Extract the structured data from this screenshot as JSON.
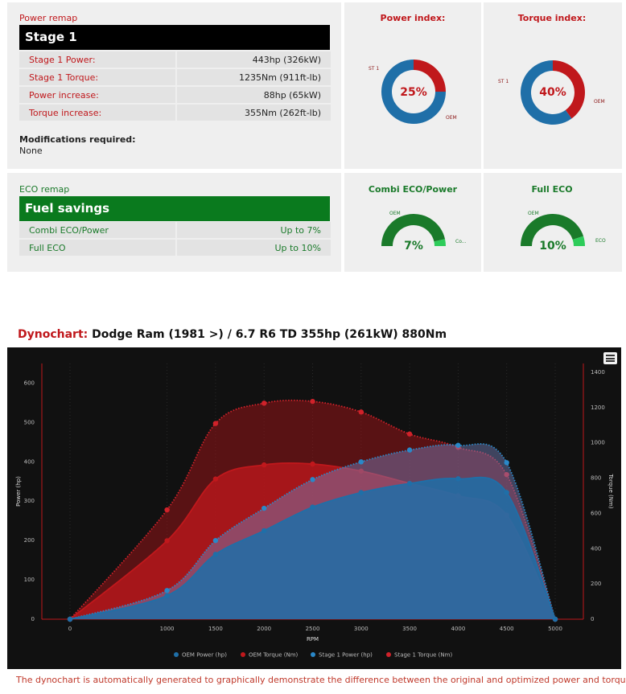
{
  "power_remap": {
    "section_title": "Power remap",
    "bar_title": "Stage 1",
    "rows": [
      {
        "label": "Stage 1 Power:",
        "value": "443hp (326kW)"
      },
      {
        "label": "Stage 1 Torque:",
        "value": "1235Nm (911ft-lb)"
      },
      {
        "label": "Power increase:",
        "value": "88hp (65kW)"
      },
      {
        "label": "Torque increase:",
        "value": "355Nm (262ft-lb)"
      }
    ],
    "mods_label": "Modifications required:",
    "mods_value": "None"
  },
  "power_index": {
    "title": "Power index:",
    "percent_label": "25%",
    "fraction": 0.25,
    "label_st": "ST 1",
    "label_oem": "OEM"
  },
  "torque_index": {
    "title": "Torque index:",
    "percent_label": "40%",
    "fraction": 0.4,
    "label_st": "ST 1",
    "label_oem": "OEM"
  },
  "eco_remap": {
    "section_title": "ECO remap",
    "bar_title": "Fuel savings",
    "rows": [
      {
        "label": "Combi ECO/Power",
        "value": "Up to 7%"
      },
      {
        "label": "Full ECO",
        "value": "Up to 10%"
      }
    ]
  },
  "combi_eco": {
    "title": "Combi ECO/Power",
    "percent_label": "7%",
    "fraction": 0.07,
    "label_oem": "OEM",
    "label_right": "Co..."
  },
  "full_eco": {
    "title": "Full ECO",
    "percent_label": "10%",
    "fraction": 0.1,
    "label_oem": "OEM",
    "label_right": "ECO"
  },
  "dyno": {
    "heading_prefix": "Dynochart:",
    "heading_rest": " Dodge Ram (1981 >) / 6.7 R6 TD 355hp (261kW) 880Nm",
    "footnote": "The dynochart is automatically generated to graphically demonstrate the difference between the original and optimized power and torque."
  },
  "chart_data": {
    "type": "area",
    "xlabel": "RPM",
    "ylabel_left": "Power (hp)",
    "ylabel_right": "Torque (Nm)",
    "x_ticks": [
      "0",
      "1000",
      "1500",
      "2000",
      "2500",
      "3000",
      "3500",
      "4000",
      "4500",
      "5000"
    ],
    "x_range": [
      0,
      5000
    ],
    "y_left_ticks": [
      "0",
      "100",
      "200",
      "300",
      "400",
      "500",
      "600"
    ],
    "y_left_range": [
      0,
      650
    ],
    "y_right_ticks": [
      "0",
      "200",
      "400",
      "600",
      "800",
      "1000",
      "1200",
      "1400"
    ],
    "y_right_range": [
      0,
      1450
    ],
    "series": [
      {
        "name": "OEM Power (hp)",
        "axis": "left",
        "color": "#1f6fa8",
        "style": "solid",
        "points": [
          [
            0,
            0
          ],
          [
            1000,
            60
          ],
          [
            1500,
            165
          ],
          [
            2000,
            225
          ],
          [
            2500,
            285
          ],
          [
            3000,
            322
          ],
          [
            3500,
            345
          ],
          [
            4000,
            357
          ],
          [
            4500,
            322
          ],
          [
            5000,
            0
          ]
        ]
      },
      {
        "name": "OEM Torque (Nm)",
        "axis": "right",
        "color": "#c0181c",
        "style": "solid",
        "points": [
          [
            0,
            0
          ],
          [
            1000,
            445
          ],
          [
            1500,
            795
          ],
          [
            2000,
            875
          ],
          [
            2500,
            880
          ],
          [
            3000,
            840
          ],
          [
            3500,
            770
          ],
          [
            4000,
            700
          ],
          [
            4500,
            590
          ],
          [
            5000,
            0
          ]
        ]
      },
      {
        "name": "Stage 1 Power (hp)",
        "axis": "left",
        "color": "#2a88c8",
        "style": "dotted",
        "points": [
          [
            0,
            0
          ],
          [
            1000,
            73
          ],
          [
            1500,
            200
          ],
          [
            2000,
            282
          ],
          [
            2500,
            355
          ],
          [
            3000,
            400
          ],
          [
            3500,
            430
          ],
          [
            4000,
            442
          ],
          [
            4500,
            398
          ],
          [
            5000,
            0
          ]
        ]
      },
      {
        "name": "Stage 1 Torque (Nm)",
        "axis": "right",
        "color": "#d0222a",
        "style": "dotted",
        "points": [
          [
            0,
            0
          ],
          [
            1000,
            620
          ],
          [
            1500,
            1110
          ],
          [
            2000,
            1225
          ],
          [
            2500,
            1235
          ],
          [
            3000,
            1175
          ],
          [
            3500,
            1050
          ],
          [
            4000,
            975
          ],
          [
            4500,
            820
          ],
          [
            5000,
            0
          ]
        ]
      }
    ],
    "legend_position": "bottom",
    "grid": true
  },
  "colors": {
    "red": "#c0181c",
    "green": "#1a7a2a",
    "blue": "#1f6fa8",
    "black": "#000000"
  },
  "icons": {
    "chart_menu": "hamburger-menu-icon"
  }
}
